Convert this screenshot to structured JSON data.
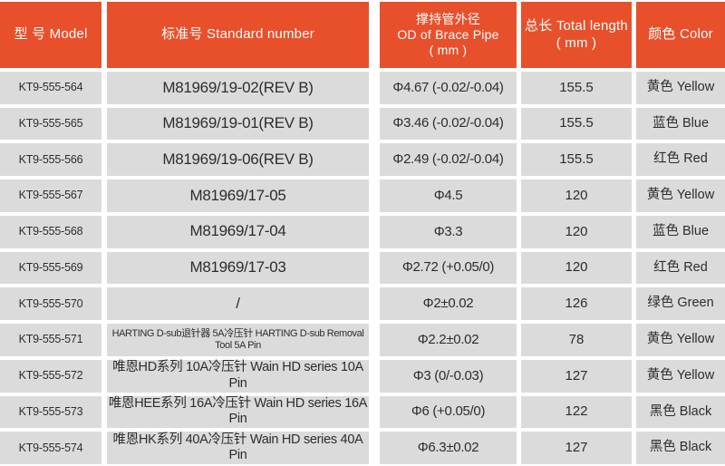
{
  "table": {
    "header": {
      "model": "型 号 Model",
      "standard_number": "标准号  Standard number",
      "od_line1": "撑持管外径",
      "od_line2": "OD of Brace Pipe",
      "od_line3": "( mm )",
      "total_length_line1": "总长  Total length",
      "total_length_line2": "( mm )",
      "color": "颜色 Color"
    },
    "rows": [
      {
        "model": "KT9-555-564",
        "standard": "M81969/19-02(REV B)",
        "od": "Φ4.67 (-0.02/-0.04)",
        "length": "155.5",
        "color": "黄色 Yellow"
      },
      {
        "model": "KT9-555-565",
        "standard": "M81969/19-01(REV B)",
        "od": "Φ3.46 (-0.02/-0.04)",
        "length": "155.5",
        "color": "蓝色 Blue"
      },
      {
        "model": "KT9-555-566",
        "standard": "M81969/19-06(REV B)",
        "od": "Φ2.49 (-0.02/-0.04)",
        "length": "155.5",
        "color": "红色 Red"
      },
      {
        "model": "KT9-555-567",
        "standard": "M81969/17-05",
        "od": "Φ4.5",
        "length": "120",
        "color": "黄色 Yellow"
      },
      {
        "model": "KT9-555-568",
        "standard": "M81969/17-04",
        "od": "Φ3.3",
        "length": "120",
        "color": "蓝色 Blue"
      },
      {
        "model": "KT9-555-569",
        "standard": "M81969/17-03",
        "od": "Φ2.72 (+0.05/0)",
        "length": "120",
        "color": "红色 Red"
      },
      {
        "model": "KT9-555-570",
        "standard": "/",
        "od": "Φ2±0.02",
        "length": "126",
        "color": "绿色 Green"
      },
      {
        "model": "KT9-555-571",
        "standard": "HARTING D-sub退针器 5A冷压针 HARTING D-sub Removal Tool 5A Pin",
        "od": "Φ2.2±0.02",
        "length": "78",
        "color": "黄色 Yellow"
      },
      {
        "model": "KT9-555-572",
        "standard": "唯恩HD系列 10A冷压针 Wain HD series 10A Pin",
        "od": "Φ3 (0/-0.03)",
        "length": "127",
        "color": "黄色 Yellow"
      },
      {
        "model": "KT9-555-573",
        "standard": "唯恩HEE系列 16A冷压针 Wain HD series 16A Pin",
        "od": "Φ6 (+0.05/0)",
        "length": "122",
        "color": "黑色 Black"
      },
      {
        "model": "KT9-555-574",
        "standard": "唯恩HK系列 40A冷压针  Wain HD series 40A Pin",
        "od": "Φ6.3±0.02",
        "length": "127",
        "color": "黑色 Black"
      }
    ]
  },
  "colors": {
    "header_bg": "#E8502B",
    "header_text": "#FFFFFF",
    "row_bg": "#DBDBDB",
    "cell_text": "#2D2D2D"
  }
}
